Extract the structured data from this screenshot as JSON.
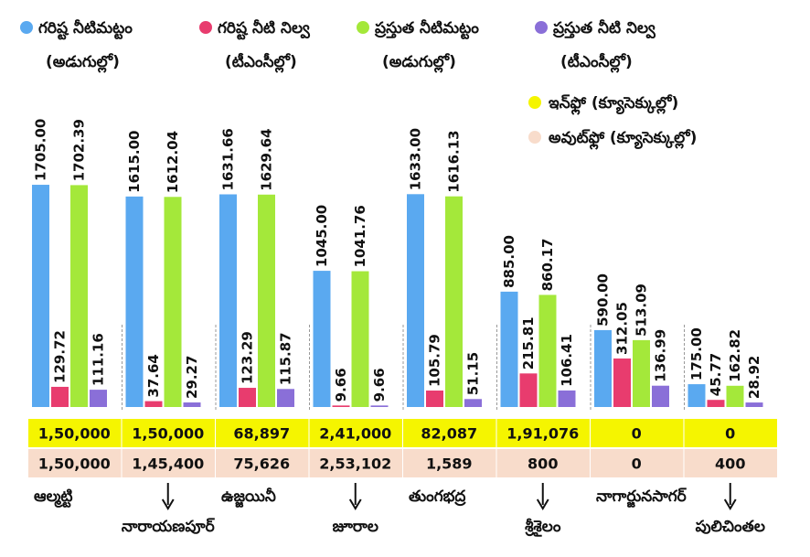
{
  "chart_data": {
    "type": "bar",
    "categories": [
      "ఆల్మట్టి",
      "నారాయణపూర్",
      "ఉజ్జయినీ",
      "జూరాల",
      "తుంగభద్ర",
      "శ్రీశైలం",
      "నాగార్జునసాగర్",
      "పులిచింతల"
    ],
    "series": [
      {
        "name": "గరిష్ట నీటిమట్టం",
        "unit": "(అడుగుల్లో)",
        "color": "#5aa9f0",
        "values": [
          1705,
          1615,
          1631.66,
          1045,
          1633,
          885,
          590,
          175
        ],
        "value_labels": [
          "1705.00",
          "1615.00",
          "1631.66",
          "1045.00",
          "1633.00",
          "885.00",
          "590.00",
          "175.00"
        ]
      },
      {
        "name": "గరిష్ట నీటి నిల్వ",
        "unit": "(టీఎంసీల్లో)",
        "color": "#e83c6e",
        "values": [
          129.72,
          37.64,
          123.29,
          9.66,
          105.79,
          215.81,
          312.05,
          45.77
        ]
      },
      {
        "name": "ప్రస్తుత నీటిమట్టం",
        "unit": "(అడుగుల్లో)",
        "color": "#a4e83a",
        "values": [
          1702.39,
          1612.04,
          1629.64,
          1041.76,
          1616.13,
          860.17,
          513.09,
          162.82
        ]
      },
      {
        "name": "ప్రస్తుత నీటి నిల్వ",
        "unit": "(టీఎంసీల్లో)",
        "color": "#8a6fd8",
        "values": [
          111.16,
          29.27,
          115.87,
          9.66,
          51.15,
          106.41,
          136.99,
          28.92
        ]
      }
    ],
    "flows": [
      {
        "name": "ఇన్‌ఫ్లో (క్యూసెక్కుల్లో)",
        "color": "#f5f500",
        "values": [
          150000,
          150000,
          68897,
          241000,
          82087,
          191076,
          0,
          0
        ],
        "value_labels": [
          "1,50,000",
          "1,50,000",
          "68,897",
          "2,41,000",
          "82,087",
          "1,91,076",
          "0",
          "0"
        ]
      },
      {
        "name": "అవుట్‌ఫ్లో (క్యూసెక్కుల్లో)",
        "color": "#f8dccb",
        "values": [
          150000,
          145400,
          75626,
          253102,
          1589,
          800,
          0,
          400
        ],
        "value_labels": [
          "1,50,000",
          "1,45,400",
          "75,626",
          "2,53,102",
          "1,589",
          "800",
          "0",
          "400"
        ]
      }
    ]
  }
}
